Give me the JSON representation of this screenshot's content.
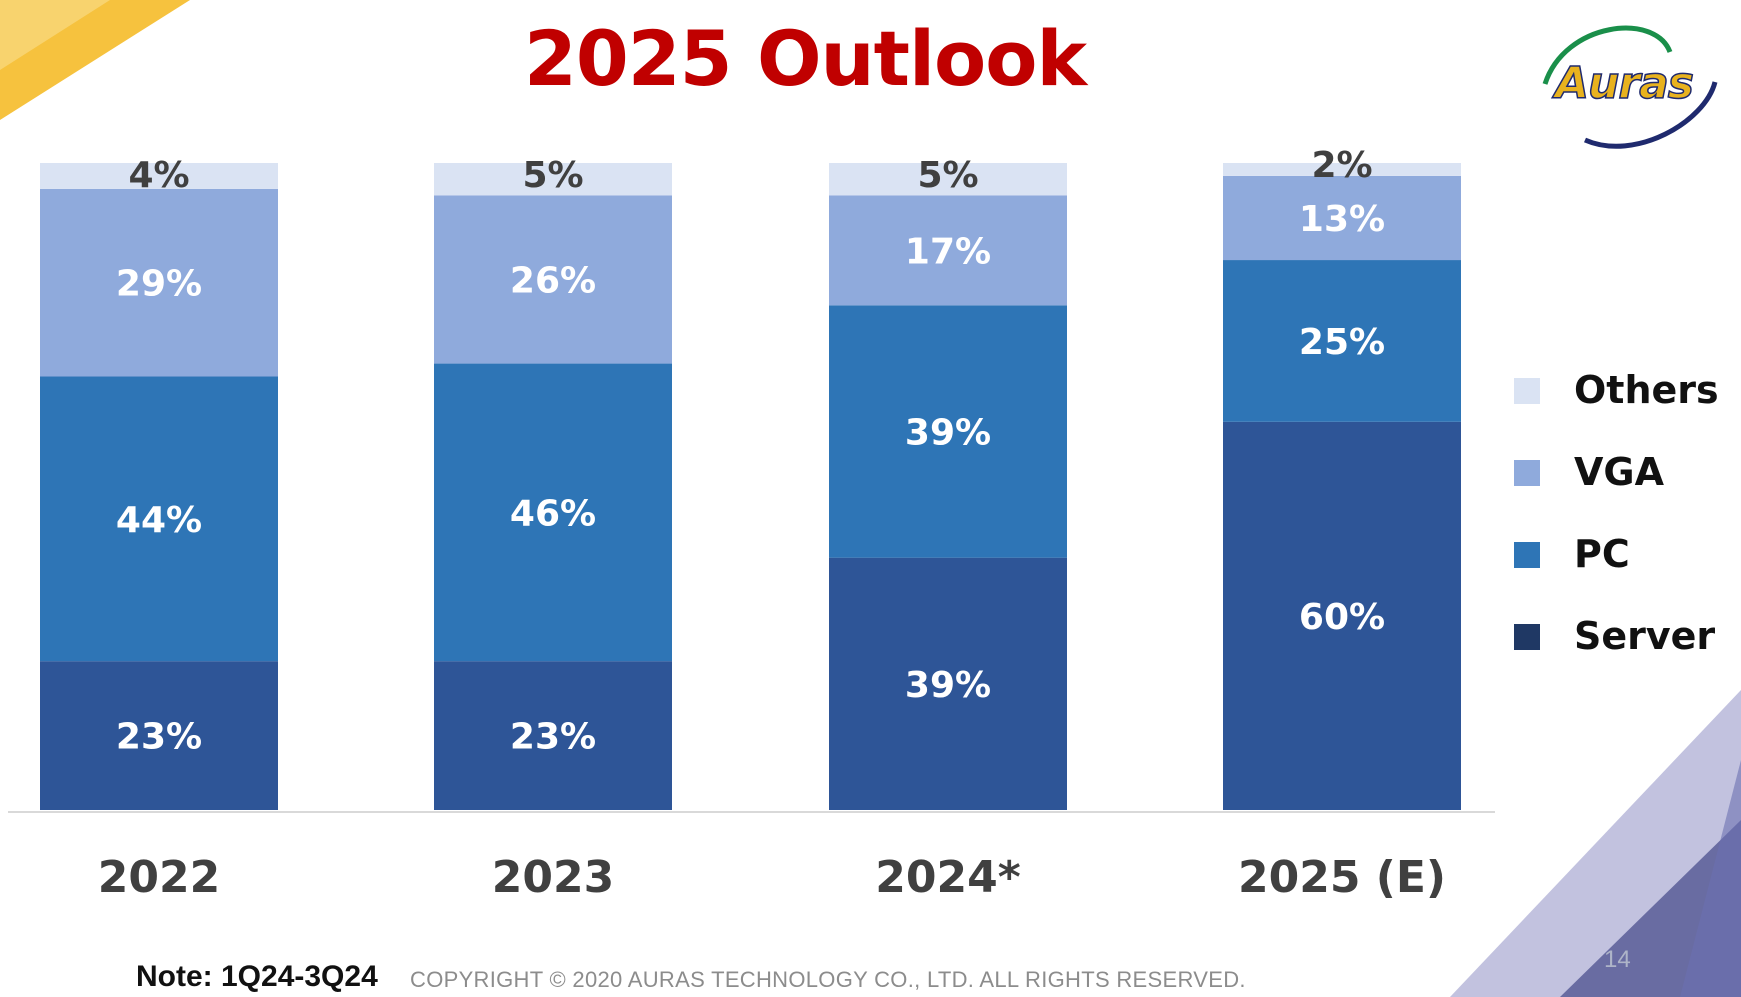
{
  "title": "2025 Outlook",
  "logo": {
    "text": "Auras"
  },
  "note": "Note: 1Q24-3Q24",
  "copyright": "COPYRIGHT © 2020 AURAS TECHNOLOGY CO., LTD. ALL RIGHTS RESERVED.",
  "page_number": "14",
  "colors": {
    "server": "#2e5597",
    "pc": "#2e75b6",
    "vga": "#8faadc",
    "others": "#dae3f3",
    "title": "#c00000"
  },
  "chart_data": {
    "type": "bar",
    "stacked": true,
    "categories": [
      "2022",
      "2023",
      "2024*",
      "2025 (E)"
    ],
    "series": [
      {
        "name": "Server",
        "key": "server",
        "values": [
          23,
          23,
          39,
          60
        ],
        "labels": [
          "23%",
          "23%",
          "39%",
          "60%"
        ]
      },
      {
        "name": "PC",
        "key": "pc",
        "values": [
          44,
          46,
          39,
          25
        ],
        "labels": [
          "44%",
          "46%",
          "39%",
          "25%"
        ]
      },
      {
        "name": "VGA",
        "key": "vga",
        "values": [
          29,
          26,
          17,
          13
        ],
        "labels": [
          "29%",
          "26%",
          "17%",
          "13%"
        ]
      },
      {
        "name": "Others",
        "key": "others",
        "values": [
          4,
          5,
          5,
          2
        ],
        "labels": [
          "4%",
          "5%",
          "5%",
          "2%"
        ]
      }
    ],
    "ylim": [
      0,
      100
    ],
    "grid": false,
    "legend": {
      "placement": "right",
      "items": [
        "Others",
        "VGA",
        "PC",
        "Server"
      ]
    }
  }
}
